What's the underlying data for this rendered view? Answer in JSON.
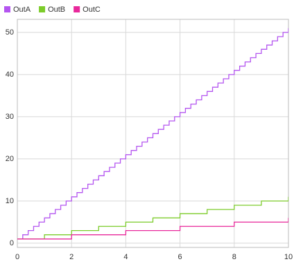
{
  "chart_data": {
    "type": "line",
    "step": "post",
    "xlim": [
      0,
      10
    ],
    "ylim": [
      -1,
      53.1
    ],
    "xticks": [
      0,
      2,
      4,
      6,
      8,
      10
    ],
    "yticks": [
      0,
      10,
      20,
      30,
      40,
      50
    ],
    "grid": true,
    "legend": "top-left",
    "series": [
      {
        "name": "OutA",
        "color": "#b455f0",
        "x": [
          0,
          0.2,
          0.4,
          0.6,
          0.8,
          1,
          1.2,
          1.4,
          1.6,
          1.8,
          2,
          2.2,
          2.4,
          2.6,
          2.8,
          3,
          3.2,
          3.4,
          3.6,
          3.8,
          4,
          4.2,
          4.4,
          4.6,
          4.8,
          5,
          5.2,
          5.4,
          5.6,
          5.8,
          6,
          6.2,
          6.4,
          6.6,
          6.8,
          7,
          7.2,
          7.4,
          7.6,
          7.8,
          8,
          8.2,
          8.4,
          8.6,
          8.8,
          9,
          9.2,
          9.4,
          9.6,
          9.8,
          10
        ],
        "values": [
          1,
          2,
          3,
          4,
          5,
          6,
          7,
          8,
          9,
          10,
          11,
          12,
          13,
          14,
          15,
          16,
          17,
          18,
          19,
          20,
          21,
          22,
          23,
          24,
          25,
          26,
          27,
          28,
          29,
          30,
          31,
          32,
          33,
          34,
          35,
          36,
          37,
          38,
          39,
          40,
          41,
          42,
          43,
          44,
          45,
          46,
          47,
          48,
          49,
          50,
          51
        ]
      },
      {
        "name": "OutB",
        "color": "#7ccc2a",
        "x": [
          0,
          1,
          2,
          3,
          4,
          5,
          6,
          7,
          8,
          9,
          10
        ],
        "values": [
          1,
          2,
          3,
          4,
          5,
          6,
          7,
          8,
          9,
          10,
          11
        ]
      },
      {
        "name": "OutC",
        "color": "#e8289b",
        "x": [
          0,
          2,
          4,
          6,
          8,
          10
        ],
        "values": [
          1,
          2,
          3,
          4,
          5,
          6
        ]
      }
    ]
  }
}
